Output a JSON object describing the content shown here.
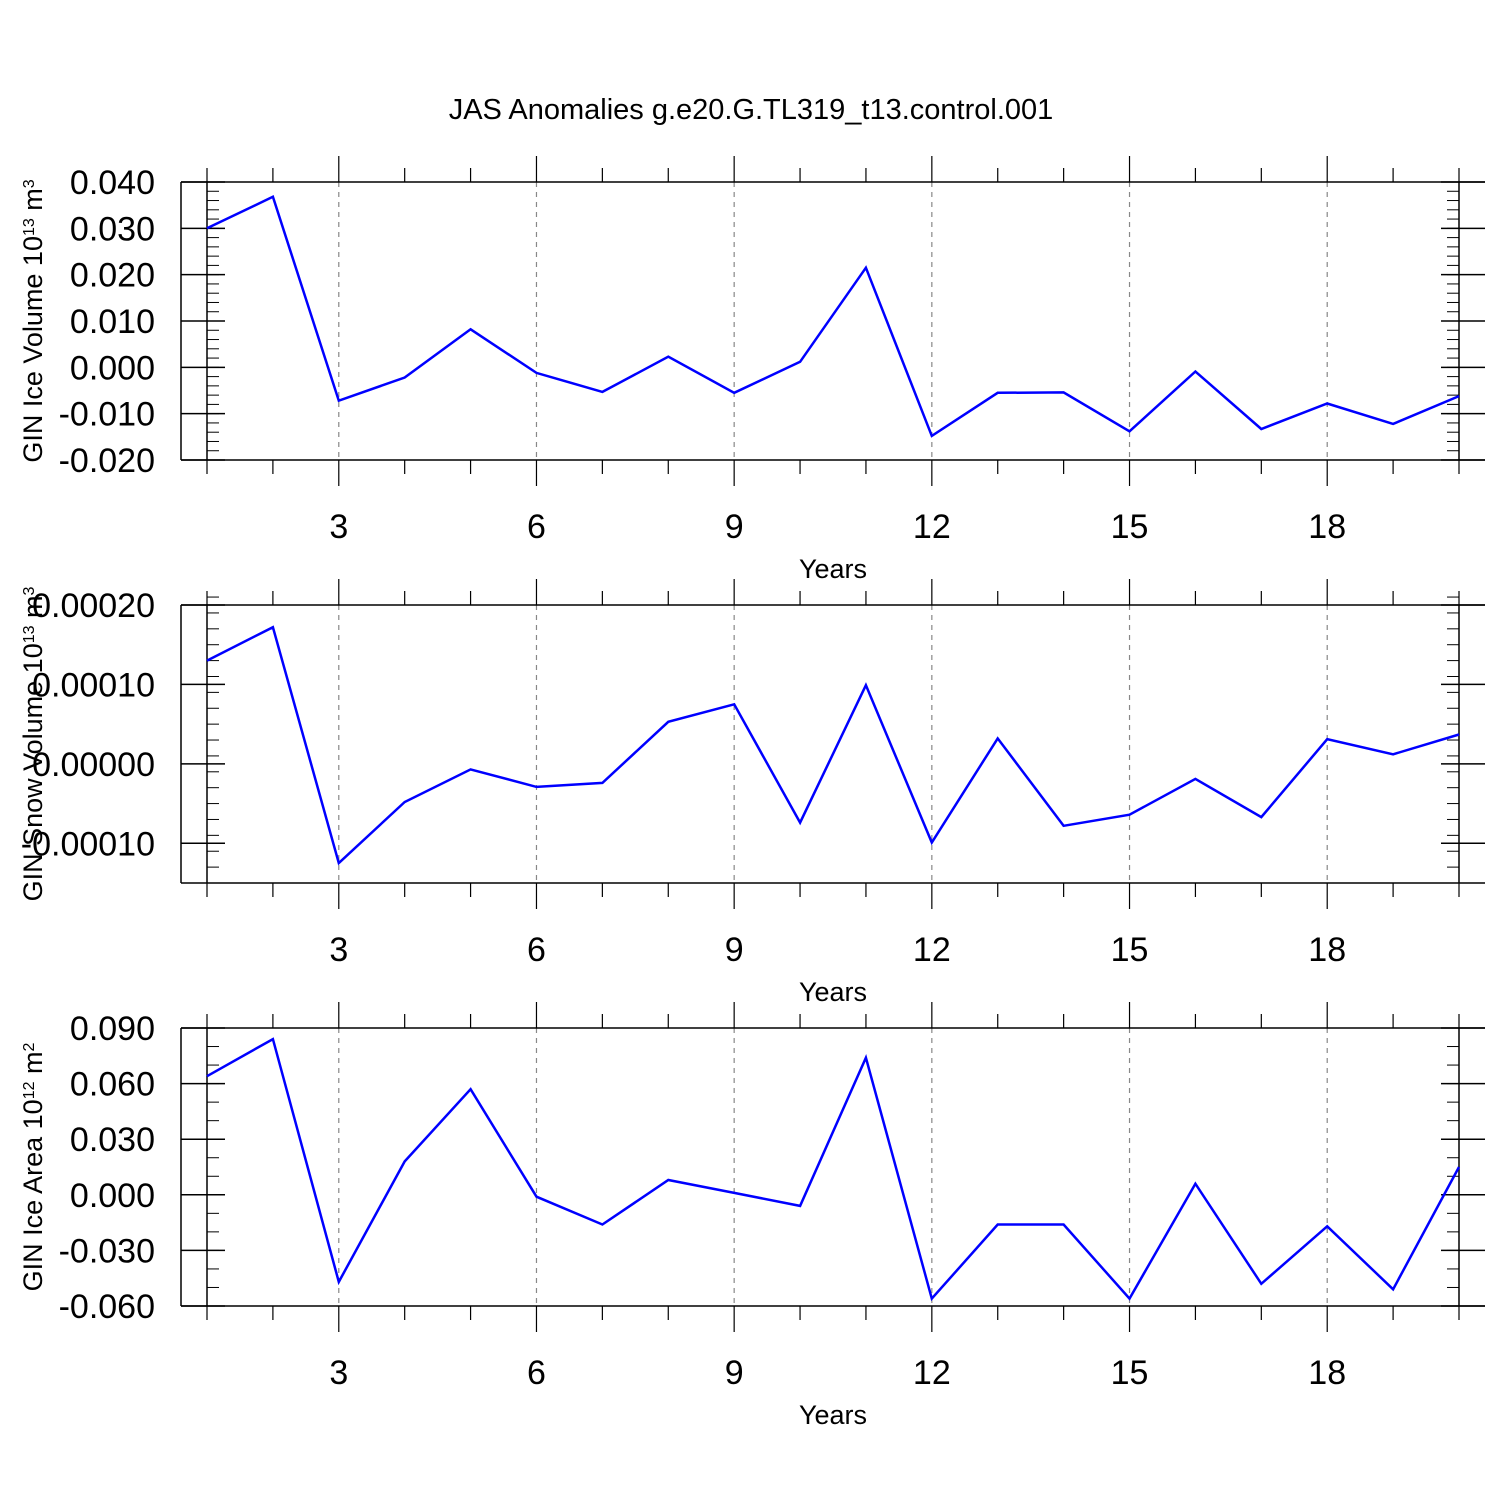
{
  "figure": {
    "title": "JAS Anomalies g.e20.G.TL319_t13.control.001"
  },
  "chart_data": [
    {
      "type": "line",
      "title": "",
      "xlabel": "Years",
      "ylabel": {
        "pre": "GIN Ice Volume 10",
        "sup": "13",
        "post": " m",
        "sup2": "3"
      },
      "xlim": [
        1,
        20
      ],
      "ylim": [
        -0.02,
        0.04
      ],
      "x_ticks": [
        3,
        6,
        9,
        12,
        15,
        18
      ],
      "x_tick_labels": [
        "3",
        "6",
        "9",
        "12",
        "15",
        "18"
      ],
      "y_ticks": [
        0.04,
        0.03,
        0.02,
        0.01,
        0.0,
        -0.01,
        -0.02
      ],
      "y_tick_labels": [
        "0.040",
        "0.030",
        "0.020",
        "0.010",
        "0.000",
        "-0.010",
        "-0.020"
      ],
      "y_minor_step": 0.002,
      "grid": "vertical dashed at major x ticks",
      "series": [
        {
          "color": "#0000ff",
          "x": [
            1,
            2,
            3,
            4,
            5,
            6,
            7,
            8,
            9,
            10,
            11,
            12,
            13,
            14,
            15,
            16,
            17,
            18,
            19,
            20
          ],
          "values": [
            0.03,
            0.0368,
            -0.0072,
            -0.0022,
            0.0082,
            -0.0012,
            -0.0053,
            0.0023,
            -0.0055,
            0.0012,
            0.0215,
            -0.0148,
            -0.0055,
            -0.0054,
            -0.0138,
            -0.0009,
            -0.0133,
            -0.0078,
            -0.0122,
            -0.0062
          ]
        }
      ]
    },
    {
      "type": "line",
      "title": "",
      "xlabel": "Years",
      "ylabel": {
        "pre": "GIN Snow Volume 10",
        "sup": "13",
        "post": " m",
        "sup2": "3"
      },
      "xlim": [
        1,
        20
      ],
      "ylim": [
        -0.00015,
        0.0002
      ],
      "x_ticks": [
        3,
        6,
        9,
        12,
        15,
        18
      ],
      "x_tick_labels": [
        "3",
        "6",
        "9",
        "12",
        "15",
        "18"
      ],
      "y_ticks": [
        0.0002,
        0.0001,
        0.0,
        -0.0001
      ],
      "y_tick_labels": [
        "0.00020",
        "0.00010",
        "0.00000",
        "-0.00010"
      ],
      "y_minor_step": 2e-05,
      "grid": "vertical dashed at major x ticks",
      "series": [
        {
          "color": "#0000ff",
          "x": [
            1,
            2,
            3,
            4,
            5,
            6,
            7,
            8,
            9,
            10,
            11,
            12,
            13,
            14,
            15,
            16,
            17,
            18,
            19,
            20
          ],
          "values": [
            0.00013,
            0.000172,
            -0.000125,
            -4.8e-05,
            -7e-06,
            -2.9e-05,
            -2.4e-05,
            5.3e-05,
            7.5e-05,
            -7.4e-05,
            9.9e-05,
            -9.9e-05,
            3.2e-05,
            -7.8e-05,
            -6.4e-05,
            -1.9e-05,
            -6.7e-05,
            3.1e-05,
            1.2e-05,
            3.7e-05
          ]
        }
      ]
    },
    {
      "type": "line",
      "title": "",
      "xlabel": "Years",
      "ylabel": {
        "pre": "GIN Ice Area 10",
        "sup": "12",
        "post": " m",
        "sup2": "2"
      },
      "xlim": [
        1,
        20
      ],
      "ylim": [
        -0.06,
        0.09
      ],
      "x_ticks": [
        3,
        6,
        9,
        12,
        15,
        18
      ],
      "x_tick_labels": [
        "3",
        "6",
        "9",
        "12",
        "15",
        "18"
      ],
      "y_ticks": [
        0.09,
        0.06,
        0.03,
        0.0,
        -0.03,
        -0.06
      ],
      "y_tick_labels": [
        "0.090",
        "0.060",
        "0.030",
        "0.000",
        "-0.030",
        "-0.060"
      ],
      "y_minor_step": 0.01,
      "grid": "vertical dashed at major x ticks",
      "series": [
        {
          "color": "#0000ff",
          "x": [
            1,
            2,
            3,
            4,
            5,
            6,
            7,
            8,
            9,
            10,
            11,
            12,
            13,
            14,
            15,
            16,
            17,
            18,
            19,
            20
          ],
          "values": [
            0.064,
            0.084,
            -0.047,
            0.018,
            0.057,
            -0.001,
            -0.016,
            0.008,
            0.001,
            -0.006,
            0.074,
            -0.056,
            -0.016,
            -0.016,
            -0.056,
            0.006,
            -0.048,
            -0.017,
            -0.051,
            0.015
          ]
        }
      ]
    }
  ]
}
